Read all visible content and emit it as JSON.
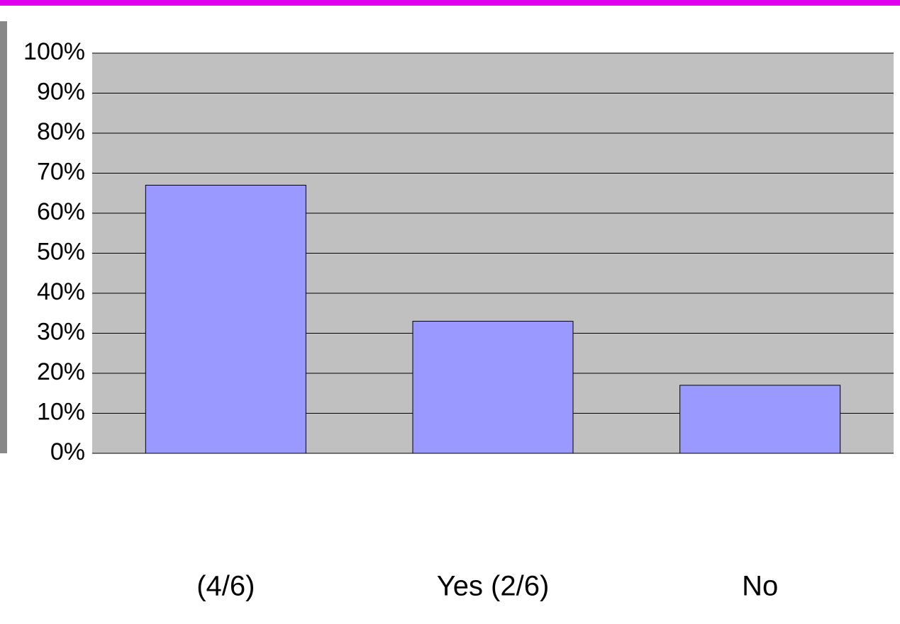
{
  "chart_data": {
    "type": "bar",
    "categories": [
      "(4/6)",
      "Yes (2/6)",
      "No"
    ],
    "values": [
      67,
      33,
      17
    ],
    "color": "#9999ff",
    "ylim": [
      0,
      100
    ],
    "yticks": [
      {
        "value": 0,
        "label": "0%"
      },
      {
        "value": 10,
        "label": "10%"
      },
      {
        "value": 20,
        "label": "20%"
      },
      {
        "value": 30,
        "label": "30%"
      },
      {
        "value": 40,
        "label": "40%"
      },
      {
        "value": 50,
        "label": "50%"
      },
      {
        "value": 60,
        "label": "60%"
      },
      {
        "value": 70,
        "label": "70%"
      },
      {
        "value": 80,
        "label": "80%"
      },
      {
        "value": 90,
        "label": "90%"
      },
      {
        "value": 100,
        "label": "100%"
      }
    ],
    "grid": true
  }
}
